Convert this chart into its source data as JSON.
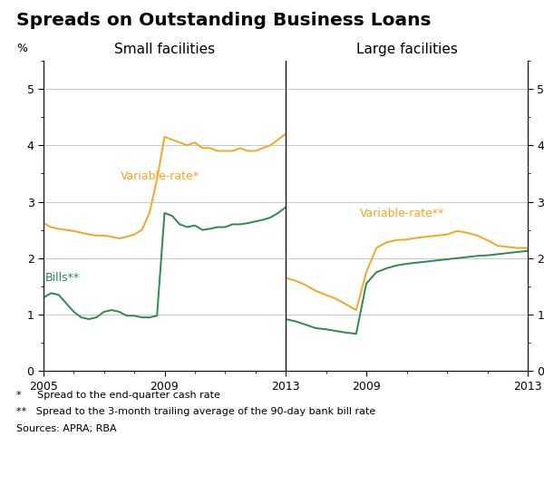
{
  "title": "Spreads on Outstanding Business Loans",
  "orange_color": "#F5A623",
  "green_color": "#2A8A50",
  "left_panel_title": "Small facilities",
  "right_panel_title": "Large facilities",
  "left_var_label": "Variable-rate*",
  "left_bills_label": "Bills**",
  "right_var_label": "Variable-rate**",
  "ylim": [
    0,
    5.5
  ],
  "yticks": [
    0,
    1,
    2,
    3,
    4,
    5
  ],
  "footnote1": "*     Spread to the end-quarter cash rate",
  "footnote2": "**   Spread to the 3-month trailing average of the 90-day bank bill rate",
  "footnote3": "Sources: APRA; RBA",
  "small_var_x": [
    2005.0,
    2005.25,
    2005.5,
    2005.75,
    2006.0,
    2006.25,
    2006.5,
    2006.75,
    2007.0,
    2007.25,
    2007.5,
    2007.75,
    2008.0,
    2008.25,
    2008.5,
    2008.75,
    2009.0,
    2009.25,
    2009.5,
    2009.75,
    2010.0,
    2010.25,
    2010.5,
    2010.75,
    2011.0,
    2011.25,
    2011.5,
    2011.75,
    2012.0,
    2012.25,
    2012.5,
    2012.75,
    2013.0
  ],
  "small_var_y": [
    2.62,
    2.55,
    2.52,
    2.5,
    2.48,
    2.45,
    2.42,
    2.4,
    2.4,
    2.38,
    2.35,
    2.38,
    2.42,
    2.5,
    2.8,
    3.4,
    4.15,
    4.1,
    4.05,
    4.0,
    4.05,
    3.95,
    3.95,
    3.9,
    3.9,
    3.9,
    3.95,
    3.9,
    3.9,
    3.95,
    4.0,
    4.1,
    4.2
  ],
  "small_bills_x": [
    2005.0,
    2005.25,
    2005.5,
    2005.75,
    2006.0,
    2006.25,
    2006.5,
    2006.75,
    2007.0,
    2007.25,
    2007.5,
    2007.75,
    2008.0,
    2008.25,
    2008.5,
    2008.75,
    2009.0,
    2009.25,
    2009.5,
    2009.75,
    2010.0,
    2010.25,
    2010.5,
    2010.75,
    2011.0,
    2011.25,
    2011.5,
    2011.75,
    2012.0,
    2012.25,
    2012.5,
    2012.75,
    2013.0
  ],
  "small_bills_y": [
    1.3,
    1.38,
    1.35,
    1.2,
    1.05,
    0.95,
    0.92,
    0.95,
    1.05,
    1.08,
    1.05,
    0.98,
    0.98,
    0.95,
    0.95,
    0.98,
    2.8,
    2.75,
    2.6,
    2.55,
    2.58,
    2.5,
    2.52,
    2.55,
    2.55,
    2.6,
    2.6,
    2.62,
    2.65,
    2.68,
    2.72,
    2.8,
    2.9
  ],
  "large_var_x": [
    2007.0,
    2007.25,
    2007.5,
    2007.75,
    2008.0,
    2008.25,
    2008.5,
    2008.75,
    2009.0,
    2009.25,
    2009.5,
    2009.75,
    2010.0,
    2010.25,
    2010.5,
    2010.75,
    2011.0,
    2011.25,
    2011.5,
    2011.75,
    2012.0,
    2012.25,
    2012.5,
    2012.75,
    2013.0
  ],
  "large_var_y": [
    1.65,
    1.6,
    1.52,
    1.42,
    1.35,
    1.28,
    1.18,
    1.08,
    1.75,
    2.18,
    2.28,
    2.32,
    2.33,
    2.36,
    2.38,
    2.4,
    2.42,
    2.48,
    2.45,
    2.4,
    2.32,
    2.22,
    2.2,
    2.18,
    2.18
  ],
  "large_bills_x": [
    2007.0,
    2007.25,
    2007.5,
    2007.75,
    2008.0,
    2008.25,
    2008.5,
    2008.75,
    2009.0,
    2009.25,
    2009.5,
    2009.75,
    2010.0,
    2010.25,
    2010.5,
    2010.75,
    2011.0,
    2011.25,
    2011.5,
    2011.75,
    2012.0,
    2012.25,
    2012.5,
    2012.75,
    2013.0
  ],
  "large_bills_y": [
    0.92,
    0.88,
    0.82,
    0.76,
    0.74,
    0.71,
    0.68,
    0.66,
    1.55,
    1.75,
    1.82,
    1.87,
    1.9,
    1.92,
    1.94,
    1.96,
    1.98,
    2.0,
    2.02,
    2.04,
    2.05,
    2.07,
    2.09,
    2.11,
    2.13
  ]
}
